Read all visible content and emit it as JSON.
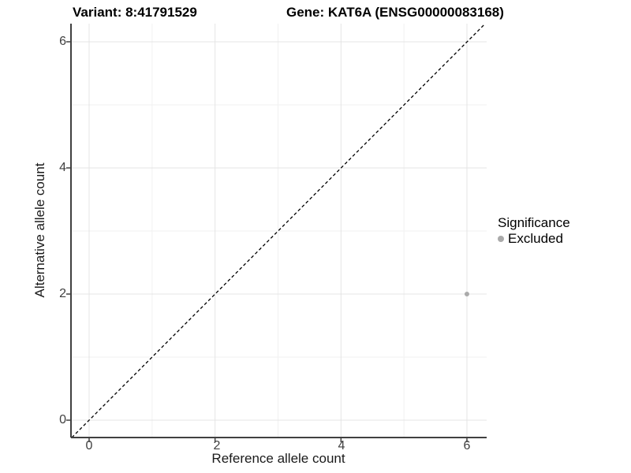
{
  "titles": {
    "variant": "Variant: 8:41791529",
    "gene": "Gene: KAT6A (ENSG00000083168)"
  },
  "axes": {
    "x": {
      "label": "Reference allele count",
      "tick_labels": [
        "0",
        "2",
        "4",
        "6"
      ]
    },
    "y": {
      "label": "Alternative allele count",
      "tick_labels": [
        "0",
        "2",
        "4",
        "6"
      ]
    }
  },
  "legend": {
    "title": "Significance",
    "items": [
      {
        "label": "Excluded",
        "color": "#aaaaaa"
      }
    ]
  },
  "chart_data": {
    "type": "scatter",
    "title": "Variant: 8:41791529 — Gene: KAT6A (ENSG00000083168)",
    "xlabel": "Reference allele count",
    "ylabel": "Alternative allele count",
    "xlim": [
      -0.29,
      6.32
    ],
    "ylim": [
      -0.275,
      6.29
    ],
    "xticks": [
      0,
      2,
      4,
      6
    ],
    "yticks": [
      0,
      2,
      4,
      6
    ],
    "minor_gridlines": [
      1,
      3,
      5
    ],
    "grid": true,
    "legend_position": "right",
    "series": [
      {
        "name": "Excluded",
        "color": "#aaaaaa",
        "points": [
          {
            "x": 6,
            "y": 2
          }
        ]
      }
    ],
    "reference_line": {
      "type": "identity",
      "slope": 1,
      "intercept": 0,
      "style": "dashed",
      "color": "#000000"
    }
  },
  "colors": {
    "background": "#ffffff",
    "axis_line": "#404040",
    "major_grid": "#e4e4e4",
    "minor_grid": "#f1f1f1",
    "point": "#aaaaaa"
  }
}
